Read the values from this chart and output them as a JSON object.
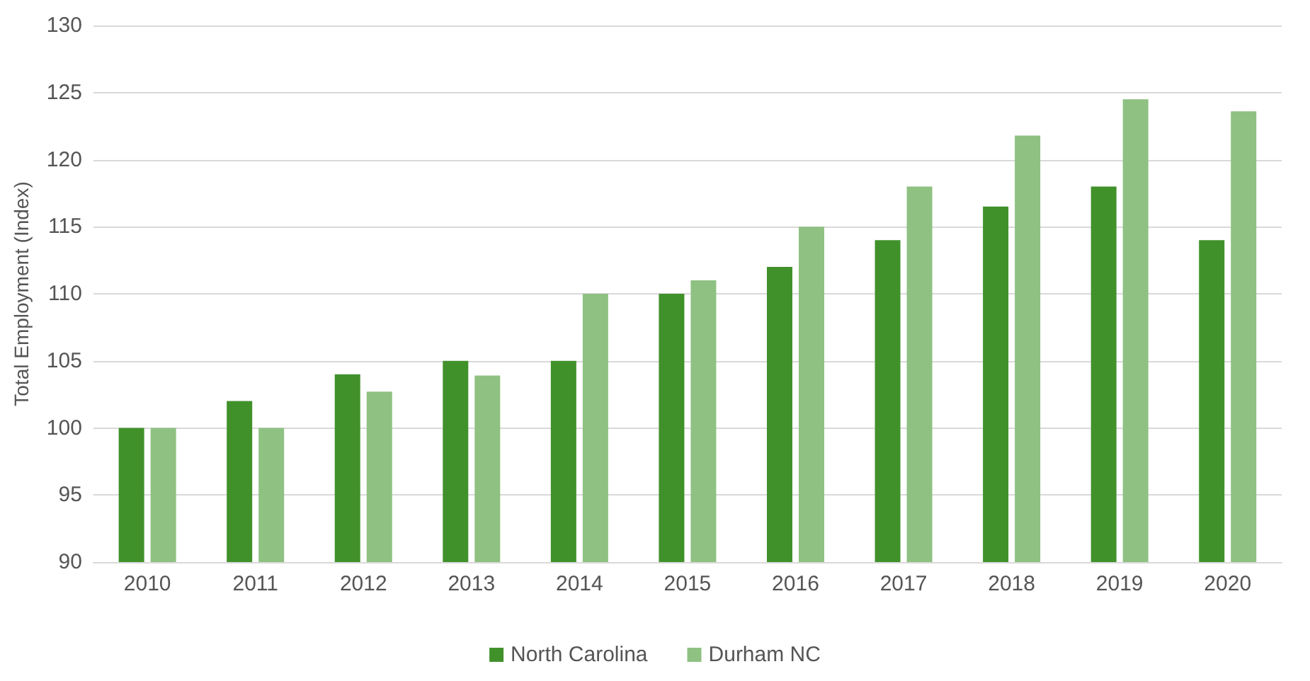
{
  "chart_data": {
    "type": "bar",
    "ylabel": "Total Employment (Index)",
    "categories": [
      "2010",
      "2011",
      "2012",
      "2013",
      "2014",
      "2015",
      "2016",
      "2017",
      "2018",
      "2019",
      "2020"
    ],
    "series": [
      {
        "name": "North Carolina",
        "color": "#41912b",
        "values": [
          100,
          102,
          104,
          105,
          105,
          110,
          112,
          114,
          116.5,
          118,
          114
        ]
      },
      {
        "name": "Durham NC",
        "color": "#8fc182",
        "values": [
          100,
          100,
          102.7,
          103.9,
          110,
          111,
          115,
          118,
          121.8,
          124.5,
          123.6
        ]
      }
    ],
    "ylim": [
      90,
      130
    ],
    "yticks": [
      90,
      95,
      100,
      105,
      110,
      115,
      120,
      125,
      130
    ],
    "grid": "y",
    "legend": "bottom"
  }
}
